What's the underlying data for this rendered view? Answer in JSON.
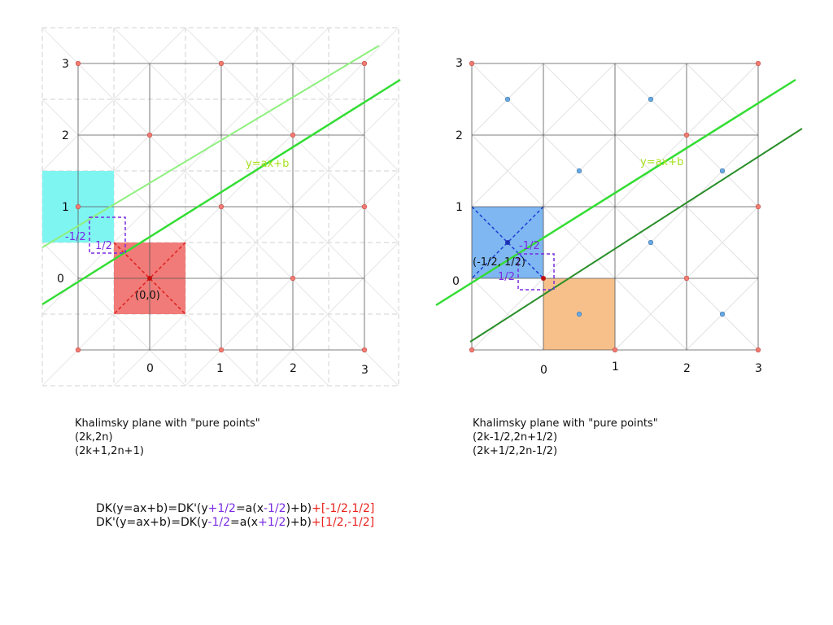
{
  "panels": [
    {
      "id": "left",
      "tick_labels_x": [
        "0",
        "1",
        "2",
        "3"
      ],
      "tick_labels_y": [
        "0",
        "1",
        "2",
        "3"
      ],
      "line_label": "y=ax+b",
      "origin_label": "(0,0)",
      "half_labels": [
        "-1/2",
        "1/2"
      ],
      "caption": [
        "Khalimsky plane with \"pure points\"",
        "(2k,2n)",
        "(2k+1,2n+1)"
      ]
    },
    {
      "id": "right",
      "tick_labels_x": [
        "0",
        "1",
        "2",
        "3"
      ],
      "tick_labels_y": [
        "0",
        "1",
        "2",
        "3"
      ],
      "line_label": "y=ax+b",
      "origin_label": "(-1/2, 1/2)",
      "half_labels": [
        "-1/2",
        "1/2"
      ],
      "caption": [
        "Khalimsky plane with \"pure points\"",
        "(2k-1/2,2n+1/2)",
        "(2k+1/2,2n-1/2)"
      ]
    }
  ],
  "formulas": [
    {
      "a": "DK(y=ax+b)=DK'(y",
      "b": "+1/2",
      "c": "=a(x",
      "d": "-1/2",
      "e": ")+b)",
      "f": "+[-1/2,1/2]"
    },
    {
      "a": "DK'(y=ax+b)=DK(y",
      "b": "-1/2",
      "c": "=a(x",
      "d": "+1/2",
      "e": ")+b)",
      "f": "+[1/2,-1/2]"
    }
  ],
  "colors": {
    "cyan_square": "#7ff5f2",
    "red_square": "#f07b78",
    "blue_square": "#7fb7f2",
    "orange_square": "#f7c08a",
    "line_light": "#8ef07e",
    "line_main": "#33dd33",
    "line_dark": "#2a8f2a",
    "purple": "#7a2be2",
    "red_point": "#f27b72",
    "blue_point": "#6aa8e0"
  }
}
